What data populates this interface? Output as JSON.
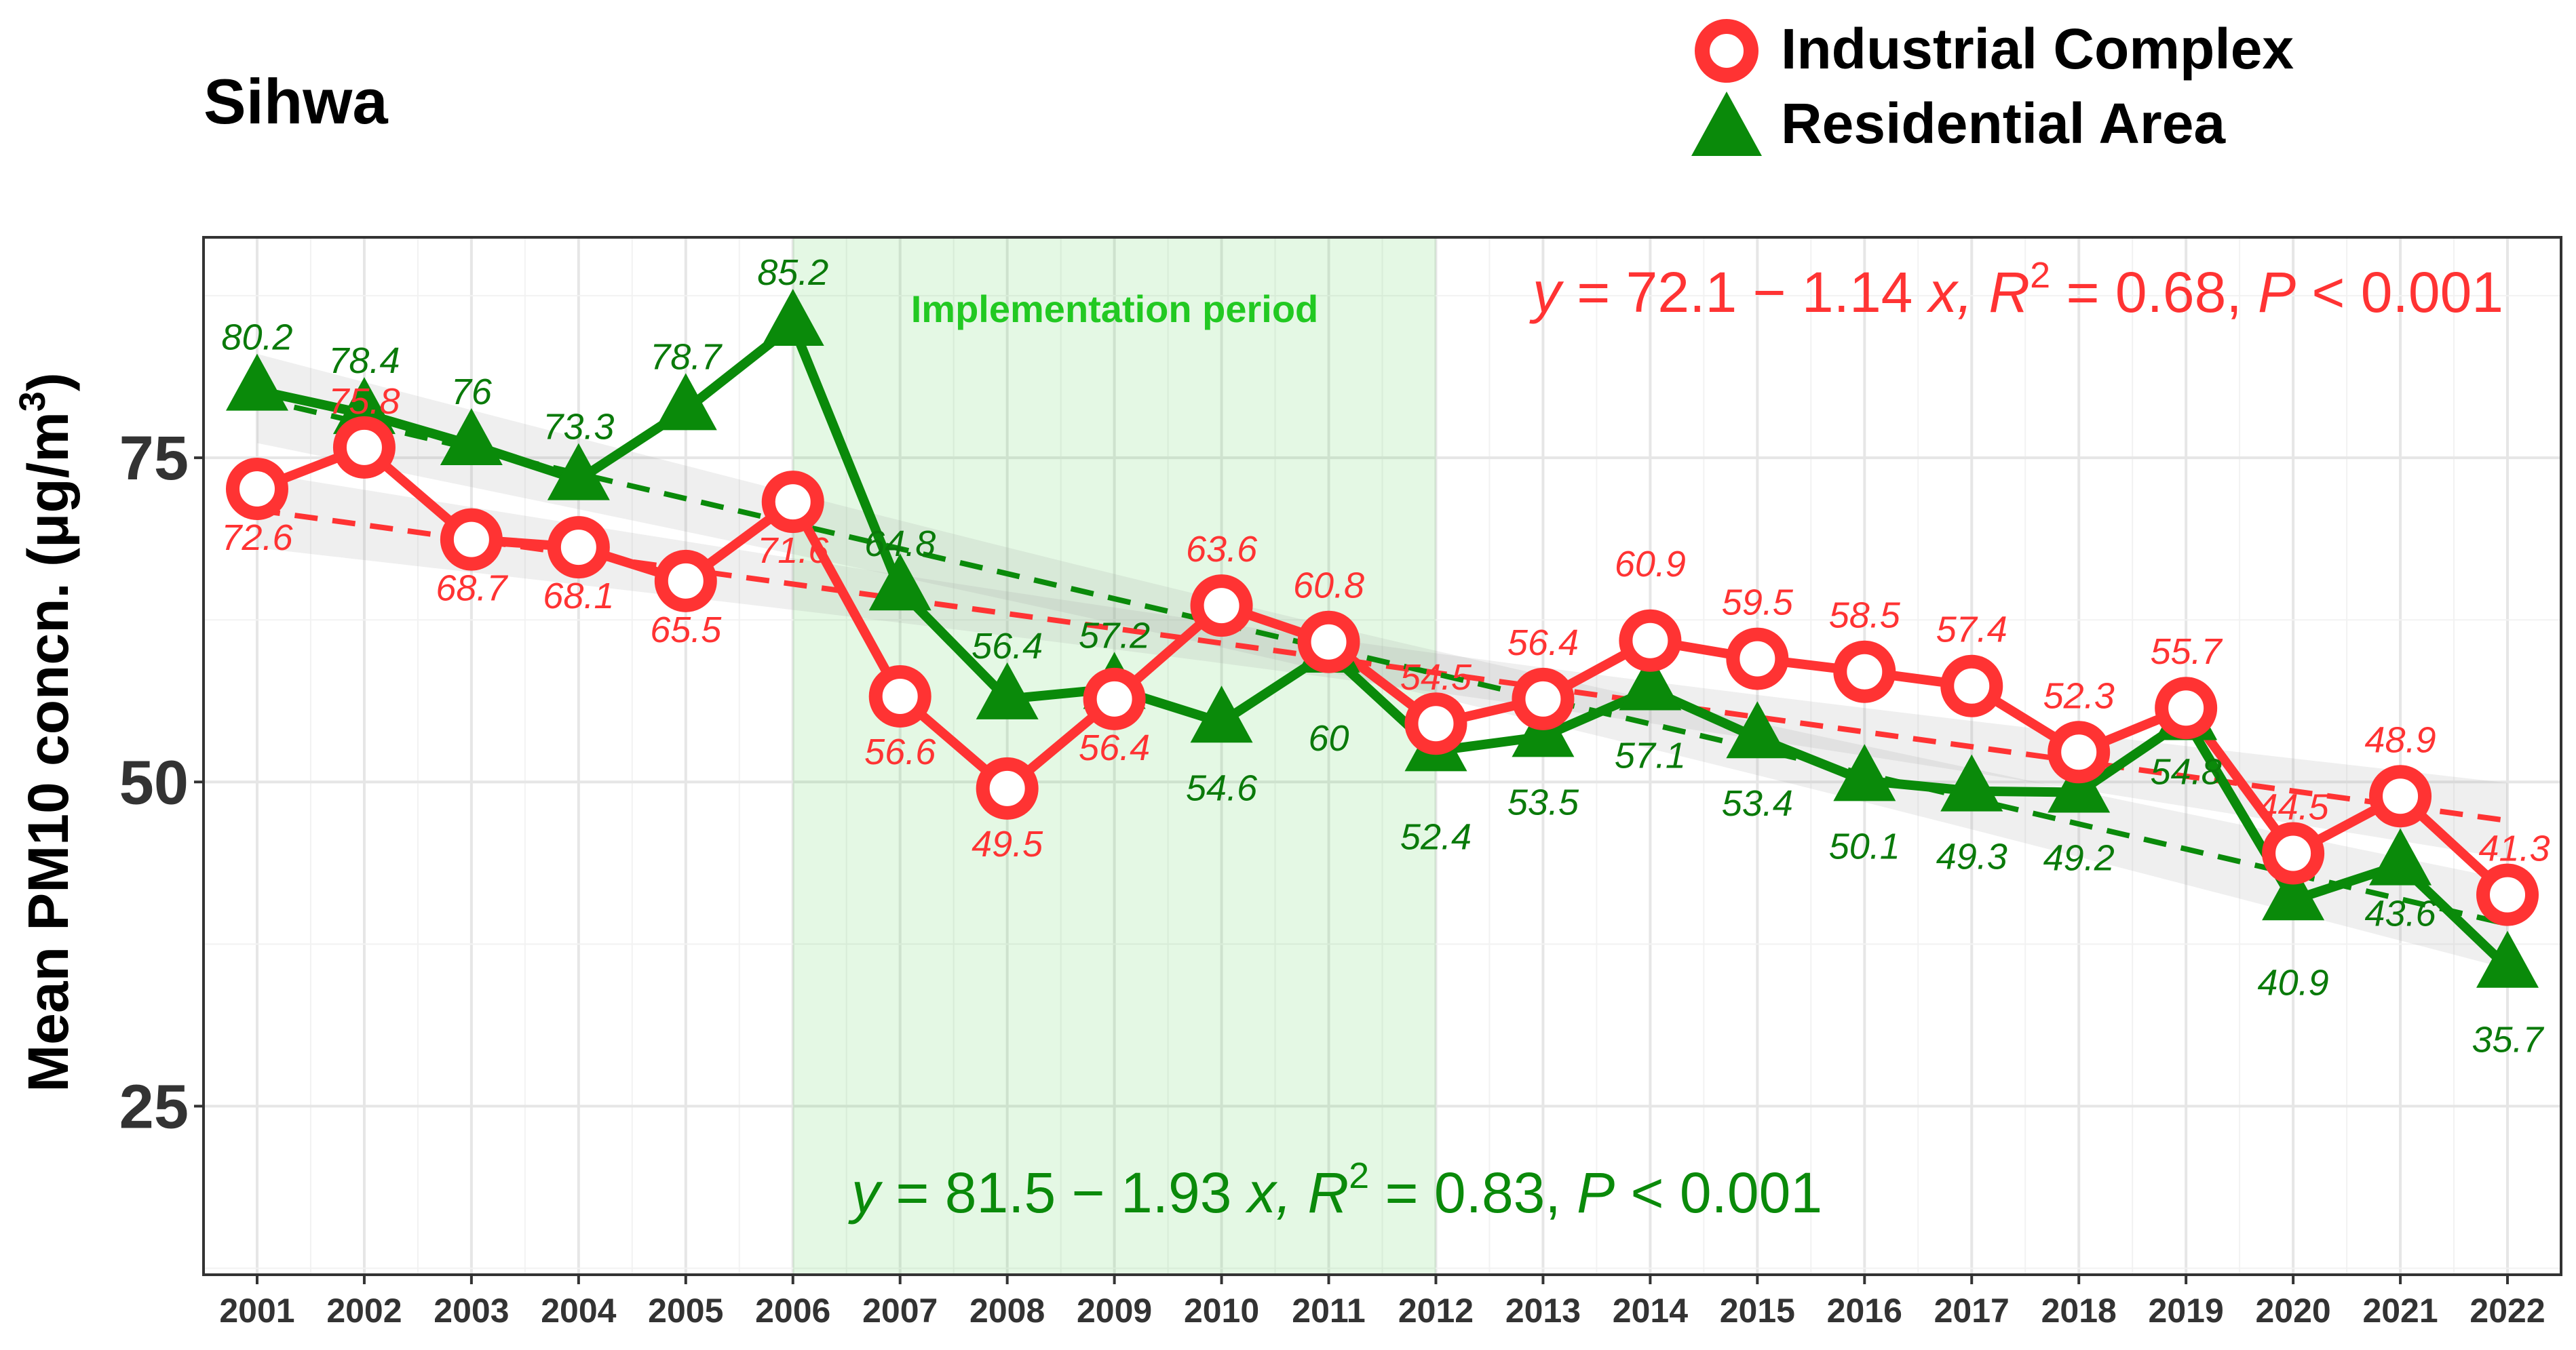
{
  "title": "Sihwa",
  "legend": [
    {
      "name": "Industrial Complex",
      "color": "#ff3333",
      "marker": "circle"
    },
    {
      "name": "Residential Area",
      "color": "#0a8a0a",
      "marker": "triangle"
    }
  ],
  "annotations": {
    "implementation_period": {
      "label": "Implementation period",
      "from": 2006,
      "to": 2012,
      "color": "#22c922"
    },
    "red_eq": {
      "y_italic": "y",
      "eq1": " = 72.1 − 1.14 ",
      "x_italic": "x",
      "r2": ", R",
      "sup": "2",
      "eq2": " = 0.68, ",
      "p_italic": "P",
      "eq3": " < 0.001"
    },
    "green_eq": {
      "y_italic": "y",
      "eq1": " = 81.5 − 1.93 ",
      "x_italic": "x",
      "r2": ", R",
      "sup": "2",
      "eq2": " = 0.83, ",
      "p_italic": "P",
      "eq3": " < 0.001"
    }
  },
  "chart_data": {
    "type": "line",
    "title": "Sihwa",
    "xlabel": "",
    "ylabel": "Mean PM10 concn. (μg/m3)",
    "ylabel_parts": {
      "main": "Mean PM10 concn. (μg/m",
      "sup": "3",
      "close": ")"
    },
    "x": [
      2001,
      2002,
      2003,
      2004,
      2005,
      2006,
      2007,
      2008,
      2009,
      2010,
      2011,
      2012,
      2013,
      2014,
      2015,
      2016,
      2017,
      2018,
      2019,
      2020,
      2021,
      2022
    ],
    "ylim": [
      12,
      92
    ],
    "yticks": [
      25,
      50,
      75
    ],
    "grid": true,
    "legend_position": "top-right",
    "series": [
      {
        "name": "Industrial Complex",
        "color": "#ff3333",
        "values": [
          72.6,
          75.8,
          68.7,
          68.1,
          65.5,
          71.6,
          56.6,
          49.5,
          56.4,
          63.6,
          60.8,
          54.5,
          56.4,
          60.9,
          59.5,
          58.5,
          57.4,
          52.3,
          55.7,
          44.5,
          48.9,
          41.3
        ],
        "labels": [
          "72.6",
          "75.8",
          "68.7",
          "68.1",
          "65.5",
          "71.6",
          "56.6",
          "49.5",
          "56.4",
          "63.6",
          "60.8",
          "54.5",
          "56.4",
          "60.9",
          "59.5",
          "58.5",
          "57.4",
          "52.3",
          "55.7",
          "44.5",
          "48.9",
          "41.3"
        ],
        "trend": {
          "intercept": 72.1,
          "slope": -1.14
        }
      },
      {
        "name": "Residential Area",
        "color": "#0a8a0a",
        "values": [
          80.2,
          78.4,
          76,
          73.3,
          78.7,
          85.2,
          64.8,
          56.4,
          57.2,
          54.6,
          60,
          52.4,
          53.5,
          57.1,
          53.4,
          50.1,
          49.3,
          49.2,
          54.8,
          40.9,
          43.6,
          35.7
        ],
        "labels": [
          "80.2",
          "78.4",
          "76",
          "73.3",
          "78.7",
          "85.2",
          "64.8",
          "56.4",
          "57.2",
          "54.6",
          "60",
          "52.4",
          "53.5",
          "57.1",
          "53.4",
          "50.1",
          "49.3",
          "49.2",
          "54.8",
          "40.9",
          "43.6",
          "35.7"
        ],
        "trend": {
          "intercept": 81.5,
          "slope": -1.93
        }
      }
    ]
  }
}
